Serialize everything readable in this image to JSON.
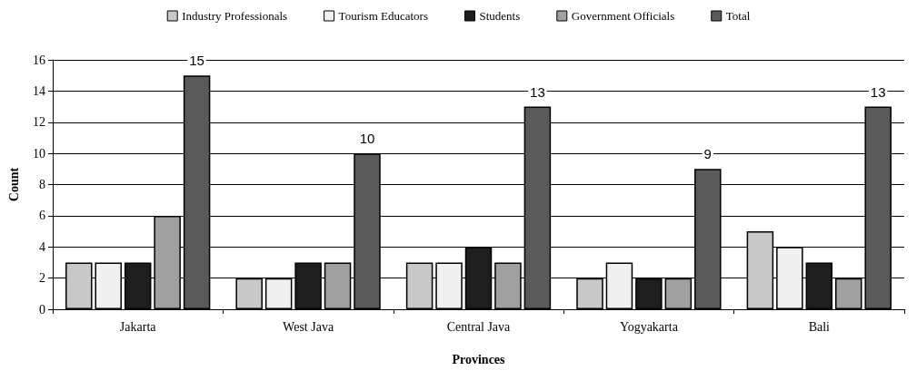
{
  "chart_data": {
    "type": "bar",
    "xlabel": "Provinces",
    "ylabel": "Count",
    "categories": [
      "Jakarta",
      "West Java",
      "Central Java",
      "Yogyakarta",
      "Bali"
    ],
    "series": [
      {
        "name": "Industry Professionals",
        "color": "#c8c8c8",
        "values": [
          3,
          2,
          3,
          2,
          5
        ]
      },
      {
        "name": "Tourism Educators",
        "color": "#f0f0f0",
        "values": [
          3,
          2,
          3,
          3,
          4
        ]
      },
      {
        "name": "Students",
        "color": "#1e1e1e",
        "values": [
          3,
          3,
          4,
          2,
          3
        ]
      },
      {
        "name": "Government Officials",
        "color": "#a0a0a0",
        "values": [
          6,
          3,
          3,
          2,
          2
        ]
      },
      {
        "name": "Total",
        "color": "#5a5a5a",
        "values": [
          15,
          10,
          13,
          9,
          13
        ],
        "value_labels": [
          "15",
          "10",
          "13",
          "9",
          "13"
        ]
      }
    ],
    "ylim": [
      0,
      16
    ],
    "yticks": [
      0,
      2,
      4,
      6,
      8,
      10,
      12,
      14,
      16
    ],
    "grid": "y",
    "legend": "top"
  }
}
